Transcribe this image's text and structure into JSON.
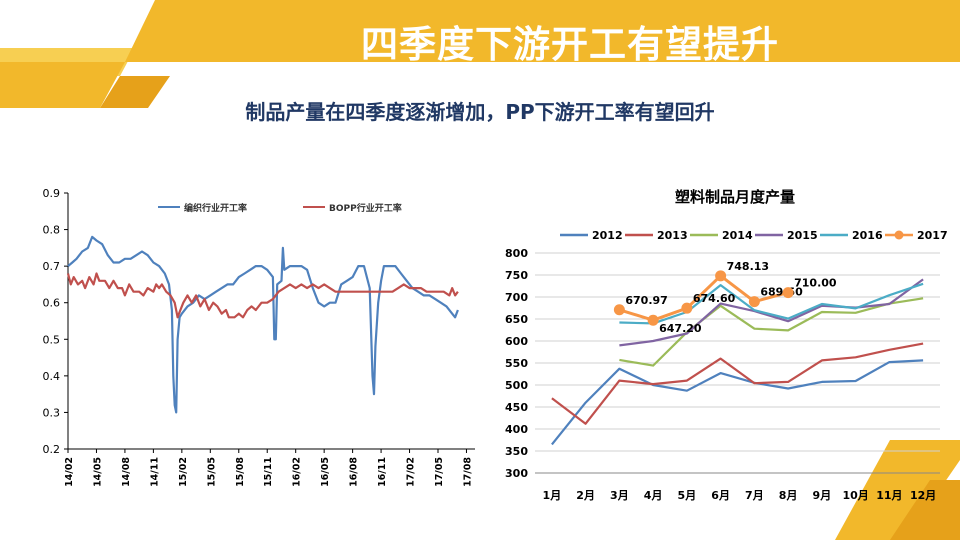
{
  "slide": {
    "title": "四季度下游开工有望提升",
    "subtitle": "制品产量在四季度逐渐增加，PP下游开工率有望回升"
  },
  "colors": {
    "banner_gold": "#F2B82B",
    "banner_orange": "#E6A11A",
    "banner_light": "#F7CF52",
    "title_text": "#FFFFFF",
    "subtitle_text": "#203864"
  },
  "chart_data": [
    {
      "type": "line",
      "title": "",
      "xlabel": "",
      "ylabel": "",
      "ylim": [
        0.2,
        0.9
      ],
      "y_ticks": [
        "0.9",
        "0.8",
        "0.7",
        "0.6",
        "0.5",
        "0.4",
        "0.3",
        "0.2"
      ],
      "x_ticks": [
        "14/02",
        "14/05",
        "14/08",
        "14/11",
        "15/02",
        "15/05",
        "15/08",
        "15/11",
        "16/02",
        "16/05",
        "16/08",
        "16/11",
        "17/02",
        "17/05",
        "17/08"
      ],
      "x_range": [
        0,
        14.3
      ],
      "grid": false,
      "legend_position": "top",
      "series": [
        {
          "name": "编织行业开工率",
          "color": "#4F81BD",
          "points": [
            [
              0,
              0.7
            ],
            [
              0.15,
              0.71
            ],
            [
              0.3,
              0.72
            ],
            [
              0.5,
              0.74
            ],
            [
              0.7,
              0.75
            ],
            [
              0.85,
              0.78
            ],
            [
              1.0,
              0.77
            ],
            [
              1.2,
              0.76
            ],
            [
              1.4,
              0.73
            ],
            [
              1.6,
              0.71
            ],
            [
              1.8,
              0.71
            ],
            [
              2.0,
              0.72
            ],
            [
              2.2,
              0.72
            ],
            [
              2.4,
              0.73
            ],
            [
              2.6,
              0.74
            ],
            [
              2.8,
              0.73
            ],
            [
              3.0,
              0.71
            ],
            [
              3.2,
              0.7
            ],
            [
              3.4,
              0.68
            ],
            [
              3.55,
              0.65
            ],
            [
              3.65,
              0.58
            ],
            [
              3.7,
              0.4
            ],
            [
              3.75,
              0.32
            ],
            [
              3.8,
              0.3
            ],
            [
              3.85,
              0.5
            ],
            [
              3.92,
              0.56
            ],
            [
              4.0,
              0.57
            ],
            [
              4.2,
              0.59
            ],
            [
              4.4,
              0.6
            ],
            [
              4.6,
              0.62
            ],
            [
              4.8,
              0.61
            ],
            [
              5.0,
              0.62
            ],
            [
              5.2,
              0.63
            ],
            [
              5.4,
              0.64
            ],
            [
              5.6,
              0.65
            ],
            [
              5.8,
              0.65
            ],
            [
              6.0,
              0.67
            ],
            [
              6.2,
              0.68
            ],
            [
              6.4,
              0.69
            ],
            [
              6.6,
              0.7
            ],
            [
              6.8,
              0.7
            ],
            [
              7.0,
              0.69
            ],
            [
              7.2,
              0.67
            ],
            [
              7.25,
              0.5
            ],
            [
              7.3,
              0.5
            ],
            [
              7.35,
              0.65
            ],
            [
              7.5,
              0.66
            ],
            [
              7.55,
              0.75
            ],
            [
              7.6,
              0.69
            ],
            [
              7.8,
              0.7
            ],
            [
              8.0,
              0.7
            ],
            [
              8.2,
              0.7
            ],
            [
              8.4,
              0.69
            ],
            [
              8.6,
              0.64
            ],
            [
              8.8,
              0.6
            ],
            [
              9.0,
              0.59
            ],
            [
              9.2,
              0.6
            ],
            [
              9.4,
              0.6
            ],
            [
              9.6,
              0.65
            ],
            [
              9.8,
              0.66
            ],
            [
              10.0,
              0.67
            ],
            [
              10.2,
              0.7
            ],
            [
              10.4,
              0.7
            ],
            [
              10.6,
              0.64
            ],
            [
              10.7,
              0.4
            ],
            [
              10.75,
              0.35
            ],
            [
              10.8,
              0.48
            ],
            [
              10.9,
              0.6
            ],
            [
              11.0,
              0.66
            ],
            [
              11.1,
              0.7
            ],
            [
              11.3,
              0.7
            ],
            [
              11.5,
              0.7
            ],
            [
              11.7,
              0.68
            ],
            [
              11.9,
              0.66
            ],
            [
              12.1,
              0.64
            ],
            [
              12.3,
              0.63
            ],
            [
              12.5,
              0.62
            ],
            [
              12.7,
              0.62
            ],
            [
              12.9,
              0.61
            ],
            [
              13.1,
              0.6
            ],
            [
              13.3,
              0.59
            ],
            [
              13.5,
              0.57
            ],
            [
              13.6,
              0.56
            ],
            [
              13.7,
              0.58
            ]
          ]
        },
        {
          "name": "BOPP行业开工率",
          "color": "#C0504D",
          "points": [
            [
              0,
              0.68
            ],
            [
              0.1,
              0.65
            ],
            [
              0.2,
              0.67
            ],
            [
              0.35,
              0.65
            ],
            [
              0.5,
              0.66
            ],
            [
              0.6,
              0.64
            ],
            [
              0.75,
              0.67
            ],
            [
              0.9,
              0.65
            ],
            [
              1.0,
              0.68
            ],
            [
              1.1,
              0.66
            ],
            [
              1.3,
              0.66
            ],
            [
              1.45,
              0.64
            ],
            [
              1.6,
              0.66
            ],
            [
              1.75,
              0.64
            ],
            [
              1.9,
              0.64
            ],
            [
              2.0,
              0.62
            ],
            [
              2.15,
              0.65
            ],
            [
              2.3,
              0.63
            ],
            [
              2.5,
              0.63
            ],
            [
              2.65,
              0.62
            ],
            [
              2.8,
              0.64
            ],
            [
              3.0,
              0.63
            ],
            [
              3.1,
              0.65
            ],
            [
              3.2,
              0.64
            ],
            [
              3.3,
              0.65
            ],
            [
              3.45,
              0.63
            ],
            [
              3.6,
              0.62
            ],
            [
              3.75,
              0.6
            ],
            [
              3.85,
              0.56
            ],
            [
              3.95,
              0.58
            ],
            [
              4.05,
              0.6
            ],
            [
              4.2,
              0.62
            ],
            [
              4.35,
              0.6
            ],
            [
              4.5,
              0.62
            ],
            [
              4.65,
              0.59
            ],
            [
              4.8,
              0.61
            ],
            [
              4.95,
              0.58
            ],
            [
              5.1,
              0.6
            ],
            [
              5.25,
              0.59
            ],
            [
              5.4,
              0.57
            ],
            [
              5.55,
              0.58
            ],
            [
              5.65,
              0.56
            ],
            [
              5.85,
              0.56
            ],
            [
              6.0,
              0.57
            ],
            [
              6.15,
              0.56
            ],
            [
              6.3,
              0.58
            ],
            [
              6.45,
              0.59
            ],
            [
              6.6,
              0.58
            ],
            [
              6.8,
              0.6
            ],
            [
              7.0,
              0.6
            ],
            [
              7.2,
              0.61
            ],
            [
              7.4,
              0.63
            ],
            [
              7.6,
              0.64
            ],
            [
              7.8,
              0.65
            ],
            [
              8.0,
              0.64
            ],
            [
              8.2,
              0.65
            ],
            [
              8.4,
              0.64
            ],
            [
              8.6,
              0.65
            ],
            [
              8.8,
              0.64
            ],
            [
              9.0,
              0.65
            ],
            [
              9.2,
              0.64
            ],
            [
              9.4,
              0.63
            ],
            [
              9.6,
              0.63
            ],
            [
              9.8,
              0.63
            ],
            [
              10.0,
              0.63
            ],
            [
              10.2,
              0.63
            ],
            [
              10.4,
              0.63
            ],
            [
              10.6,
              0.63
            ],
            [
              10.8,
              0.63
            ],
            [
              11.0,
              0.63
            ],
            [
              11.2,
              0.63
            ],
            [
              11.4,
              0.63
            ],
            [
              11.6,
              0.64
            ],
            [
              11.8,
              0.65
            ],
            [
              12.0,
              0.64
            ],
            [
              12.2,
              0.64
            ],
            [
              12.4,
              0.64
            ],
            [
              12.6,
              0.63
            ],
            [
              12.8,
              0.63
            ],
            [
              13.0,
              0.63
            ],
            [
              13.2,
              0.63
            ],
            [
              13.4,
              0.62
            ],
            [
              13.5,
              0.64
            ],
            [
              13.6,
              0.62
            ],
            [
              13.7,
              0.63
            ]
          ]
        }
      ]
    },
    {
      "type": "line",
      "title": "塑料制品月度产量",
      "xlabel": "",
      "ylabel": "",
      "ylim": [
        300,
        800
      ],
      "y_ticks": [
        "800",
        "750",
        "700",
        "650",
        "600",
        "550",
        "500",
        "450",
        "400",
        "350",
        "300"
      ],
      "categories": [
        "1月",
        "2月",
        "3月",
        "4月",
        "5月",
        "6月",
        "7月",
        "8月",
        "9月",
        "10月",
        "11月",
        "12月"
      ],
      "grid": true,
      "legend_position": "top",
      "series": [
        {
          "name": "2012",
          "color": "#4F81BD",
          "values": [
            365,
            460,
            537,
            500,
            487,
            527,
            505,
            492,
            507,
            509,
            552,
            556
          ]
        },
        {
          "name": "2013",
          "color": "#C0504D",
          "values": [
            470,
            412,
            510,
            502,
            510,
            560,
            504,
            507,
            556,
            563,
            580,
            594
          ]
        },
        {
          "name": "2014",
          "color": "#9BBB59",
          "values": [
            null,
            null,
            557,
            544,
            620,
            680,
            628,
            624,
            666,
            664,
            685,
            697
          ]
        },
        {
          "name": "2015",
          "color": "#8064A2",
          "values": [
            null,
            null,
            590,
            600,
            617,
            685,
            668,
            645,
            680,
            676,
            684,
            740
          ]
        },
        {
          "name": "2016",
          "color": "#4BACC6",
          "values": [
            null,
            null,
            642,
            640,
            666,
            727,
            670,
            651,
            684,
            674,
            704,
            730
          ]
        },
        {
          "name": "2017",
          "color": "#F79646",
          "values": [
            null,
            null,
            670.97,
            647.2,
            674.6,
            748.13,
            689.5,
            710.0,
            null,
            null,
            null,
            null
          ],
          "labels": [
            "",
            "",
            "670.97",
            "647.20",
            "674.60",
            "748.13",
            "689.50",
            "710.00",
            "",
            "",
            "",
            ""
          ]
        }
      ]
    }
  ]
}
